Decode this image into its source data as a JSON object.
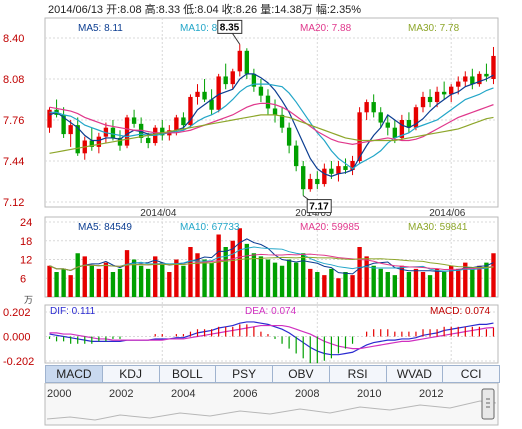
{
  "header": {
    "text": "2014/06/13 开:8.08 高:8.33 低:8.04 收:8.26 量:14.38万 幅:2.35%"
  },
  "price_panel": {
    "legend": [
      {
        "label": "MA5: 8.11",
        "color": "#0b3d91"
      },
      {
        "label": "MA10: 8.01",
        "color": "#22a6c8"
      },
      {
        "label": "MA20: 7.88",
        "color": "#e0388c"
      },
      {
        "label": "MA30: 7.78",
        "color": "#8da62a"
      }
    ],
    "y_ticks": [
      "8.40",
      "8.08",
      "7.76",
      "7.44",
      "7.12"
    ],
    "x_ticks": [
      "2014/04",
      "2014/05",
      "2014/06"
    ],
    "high_label": "8.35",
    "low_label": "7.17"
  },
  "volume_panel": {
    "legend": [
      {
        "label": "MA5: 84549",
        "color": "#0b3d91"
      },
      {
        "label": "MA10: 67733",
        "color": "#22a6c8"
      },
      {
        "label": "MA20: 59985",
        "color": "#e0388c"
      },
      {
        "label": "MA30: 59841",
        "color": "#8da62a"
      }
    ],
    "y_ticks": [
      "24",
      "18",
      "12",
      "6"
    ],
    "unit": "万"
  },
  "macd_panel": {
    "dif_label": "DIF: 0.111",
    "dea_label": "DEA: 0.074",
    "macd_label": "MACD: 0.074",
    "y_ticks": [
      "0.202",
      "0.000",
      "-0.202"
    ]
  },
  "tabs": [
    {
      "label": "MACD",
      "active": true
    },
    {
      "label": "KDJ"
    },
    {
      "label": "BOLL"
    },
    {
      "label": "PSY"
    },
    {
      "label": "OBV"
    },
    {
      "label": "RSI"
    },
    {
      "label": "WVAD"
    },
    {
      "label": "CCI"
    }
  ],
  "timeline": {
    "years": [
      "2000",
      "2002",
      "2004",
      "2006",
      "2008",
      "2010",
      "2012"
    ]
  },
  "colors": {
    "up": "#e60000",
    "down": "#00a000",
    "grid": "#d8d8d8",
    "axis_text_red": "#c00000"
  },
  "chart_data": {
    "type": "candlestick",
    "price_ylim": [
      7.12,
      8.4
    ],
    "volume_ylim": [
      0,
      24
    ],
    "macd_ylim": [
      -0.202,
      0.202
    ],
    "candles": [
      [
        7.7,
        7.86,
        7.66,
        7.84
      ],
      [
        7.84,
        7.92,
        7.78,
        7.8
      ],
      [
        7.8,
        7.86,
        7.62,
        7.65
      ],
      [
        7.65,
        7.76,
        7.55,
        7.72
      ],
      [
        7.72,
        7.78,
        7.48,
        7.5
      ],
      [
        7.5,
        7.63,
        7.45,
        7.6
      ],
      [
        7.6,
        7.7,
        7.52,
        7.55
      ],
      [
        7.55,
        7.66,
        7.5,
        7.63
      ],
      [
        7.63,
        7.74,
        7.58,
        7.7
      ],
      [
        7.7,
        7.76,
        7.6,
        7.62
      ],
      [
        7.62,
        7.68,
        7.52,
        7.56
      ],
      [
        7.56,
        7.8,
        7.54,
        7.78
      ],
      [
        7.78,
        7.84,
        7.7,
        7.73
      ],
      [
        7.73,
        7.78,
        7.58,
        7.62
      ],
      [
        7.62,
        7.66,
        7.54,
        7.58
      ],
      [
        7.58,
        7.72,
        7.56,
        7.7
      ],
      [
        7.7,
        7.76,
        7.6,
        7.64
      ],
      [
        7.64,
        7.72,
        7.6,
        7.68
      ],
      [
        7.68,
        7.8,
        7.64,
        7.78
      ],
      [
        7.78,
        7.82,
        7.68,
        7.72
      ],
      [
        7.72,
        7.96,
        7.7,
        7.94
      ],
      [
        7.94,
        8.04,
        7.88,
        7.98
      ],
      [
        7.98,
        8.08,
        7.9,
        7.92
      ],
      [
        7.92,
        8.0,
        7.8,
        7.84
      ],
      [
        7.84,
        8.12,
        7.82,
        8.1
      ],
      [
        8.1,
        8.2,
        8.0,
        8.04
      ],
      [
        8.04,
        8.16,
        8.0,
        8.14
      ],
      [
        8.14,
        8.35,
        8.1,
        8.3
      ],
      [
        8.3,
        8.32,
        8.08,
        8.12
      ],
      [
        8.12,
        8.16,
        7.98,
        8.02
      ],
      [
        8.02,
        8.08,
        7.9,
        7.95
      ],
      [
        7.95,
        8.0,
        7.8,
        7.85
      ],
      [
        7.85,
        7.92,
        7.74,
        7.8
      ],
      [
        7.8,
        7.86,
        7.66,
        7.7
      ],
      [
        7.7,
        7.74,
        7.5,
        7.56
      ],
      [
        7.56,
        7.6,
        7.36,
        7.4
      ],
      [
        7.4,
        7.44,
        7.17,
        7.22
      ],
      [
        7.22,
        7.34,
        7.2,
        7.3
      ],
      [
        7.3,
        7.36,
        7.22,
        7.26
      ],
      [
        7.26,
        7.42,
        7.24,
        7.38
      ],
      [
        7.38,
        7.44,
        7.3,
        7.34
      ],
      [
        7.34,
        7.44,
        7.28,
        7.4
      ],
      [
        7.4,
        7.46,
        7.34,
        7.37
      ],
      [
        7.37,
        7.48,
        7.33,
        7.44
      ],
      [
        7.44,
        7.86,
        7.42,
        7.82
      ],
      [
        7.82,
        7.92,
        7.76,
        7.9
      ],
      [
        7.9,
        7.96,
        7.78,
        7.82
      ],
      [
        7.82,
        7.86,
        7.7,
        7.74
      ],
      [
        7.74,
        7.8,
        7.64,
        7.7
      ],
      [
        7.7,
        7.76,
        7.58,
        7.62
      ],
      [
        7.62,
        7.8,
        7.6,
        7.76
      ],
      [
        7.76,
        7.82,
        7.66,
        7.7
      ],
      [
        7.7,
        7.88,
        7.68,
        7.86
      ],
      [
        7.86,
        7.98,
        7.82,
        7.94
      ],
      [
        7.94,
        8.0,
        7.86,
        7.9
      ],
      [
        7.9,
        8.02,
        7.86,
        7.98
      ],
      [
        7.98,
        8.06,
        7.92,
        7.96
      ],
      [
        7.96,
        8.04,
        7.9,
        8.02
      ],
      [
        8.02,
        8.1,
        7.96,
        8.06
      ],
      [
        8.06,
        8.14,
        8.02,
        8.1
      ],
      [
        8.1,
        8.16,
        8.0,
        8.04
      ],
      [
        8.04,
        8.14,
        8.02,
        8.12
      ],
      [
        8.12,
        8.2,
        8.06,
        8.1
      ],
      [
        8.08,
        8.33,
        8.04,
        8.26
      ]
    ],
    "volume": [
      10,
      8,
      9,
      7,
      14,
      13,
      10,
      9,
      11,
      8,
      9,
      15,
      12,
      10,
      9,
      13,
      11,
      8,
      12,
      10,
      16,
      14,
      12,
      11,
      20,
      16,
      18,
      22,
      17,
      14,
      13,
      12,
      11,
      10,
      12,
      11,
      14,
      9,
      8,
      7,
      9,
      6,
      8,
      7,
      16,
      13,
      10,
      9,
      8,
      7,
      10,
      8,
      9,
      8,
      7,
      9,
      8,
      10,
      9,
      11,
      9,
      10,
      11,
      14
    ],
    "ma5": [
      7.8,
      7.82,
      7.78,
      7.74,
      7.7,
      7.64,
      7.6,
      7.6,
      7.62,
      7.62,
      7.61,
      7.65,
      7.68,
      7.67,
      7.65,
      7.65,
      7.66,
      7.66,
      7.68,
      7.7,
      7.76,
      7.84,
      7.88,
      7.92,
      7.96,
      7.98,
      8.0,
      8.08,
      8.12,
      8.12,
      8.09,
      8.05,
      7.99,
      7.91,
      7.82,
      7.7,
      7.58,
      7.46,
      7.38,
      7.34,
      7.32,
      7.34,
      7.35,
      7.37,
      7.47,
      7.56,
      7.64,
      7.7,
      7.8,
      7.76,
      7.72,
      7.7,
      7.73,
      7.77,
      7.83,
      7.88,
      7.92,
      7.96,
      7.98,
      8.02,
      8.04,
      8.06,
      8.08,
      8.11
    ],
    "ma10": [
      7.82,
      7.82,
      7.8,
      7.79,
      7.76,
      7.72,
      7.7,
      7.68,
      7.66,
      7.65,
      7.64,
      7.63,
      7.64,
      7.65,
      7.64,
      7.64,
      7.65,
      7.66,
      7.67,
      7.68,
      7.71,
      7.75,
      7.78,
      7.8,
      7.83,
      7.87,
      7.92,
      7.98,
      8.02,
      8.04,
      8.04,
      8.04,
      8.03,
      8.02,
      7.97,
      7.9,
      7.82,
      7.74,
      7.66,
      7.6,
      7.52,
      7.46,
      7.42,
      7.38,
      7.42,
      7.45,
      7.48,
      7.52,
      7.58,
      7.62,
      7.64,
      7.66,
      7.7,
      7.72,
      7.74,
      7.76,
      7.8,
      7.84,
      7.88,
      7.92,
      7.94,
      7.96,
      7.99,
      8.01
    ],
    "ma20": [
      7.86,
      7.85,
      7.84,
      7.83,
      7.81,
      7.78,
      7.76,
      7.74,
      7.72,
      7.71,
      7.7,
      7.69,
      7.68,
      7.68,
      7.67,
      7.66,
      7.66,
      7.66,
      7.66,
      7.67,
      7.68,
      7.7,
      7.72,
      7.74,
      7.76,
      7.78,
      7.8,
      7.83,
      7.86,
      7.88,
      7.89,
      7.89,
      7.88,
      7.86,
      7.83,
      7.79,
      7.75,
      7.71,
      7.67,
      7.64,
      7.61,
      7.59,
      7.58,
      7.57,
      7.58,
      7.59,
      7.6,
      7.61,
      7.62,
      7.61,
      7.6,
      7.6,
      7.61,
      7.63,
      7.66,
      7.69,
      7.72,
      7.75,
      7.78,
      7.8,
      7.82,
      7.84,
      7.86,
      7.88
    ],
    "ma30": [
      7.5,
      7.51,
      7.52,
      7.53,
      7.54,
      7.55,
      7.56,
      7.57,
      7.58,
      7.59,
      7.6,
      7.61,
      7.62,
      7.63,
      7.64,
      7.65,
      7.66,
      7.67,
      7.68,
      7.69,
      7.7,
      7.71,
      7.72,
      7.73,
      7.74,
      7.75,
      7.76,
      7.77,
      7.78,
      7.79,
      7.8,
      7.8,
      7.8,
      7.79,
      7.78,
      7.76,
      7.74,
      7.72,
      7.7,
      7.68,
      7.66,
      7.64,
      7.62,
      7.61,
      7.6,
      7.6,
      7.6,
      7.6,
      7.6,
      7.6,
      7.61,
      7.62,
      7.63,
      7.64,
      7.65,
      7.66,
      7.67,
      7.68,
      7.69,
      7.71,
      7.73,
      7.75,
      7.77,
      7.78
    ],
    "dif": [
      0.02,
      0.01,
      0.0,
      -0.01,
      -0.02,
      -0.03,
      -0.04,
      -0.04,
      -0.04,
      -0.04,
      -0.04,
      -0.03,
      -0.03,
      -0.03,
      -0.03,
      -0.02,
      -0.02,
      -0.02,
      -0.01,
      -0.01,
      0.01,
      0.03,
      0.04,
      0.05,
      0.07,
      0.08,
      0.09,
      0.11,
      0.12,
      0.12,
      0.11,
      0.1,
      0.08,
      0.06,
      0.03,
      -0.01,
      -0.05,
      -0.09,
      -0.12,
      -0.14,
      -0.15,
      -0.15,
      -0.14,
      -0.13,
      -0.1,
      -0.07,
      -0.05,
      -0.04,
      -0.03,
      -0.03,
      -0.02,
      -0.02,
      -0.01,
      0.01,
      0.02,
      0.03,
      0.05,
      0.06,
      0.07,
      0.08,
      0.09,
      0.1,
      0.1,
      0.111
    ],
    "dea": [
      0.03,
      0.03,
      0.02,
      0.02,
      0.01,
      0.0,
      -0.01,
      -0.02,
      -0.02,
      -0.03,
      -0.03,
      -0.03,
      -0.03,
      -0.03,
      -0.03,
      -0.03,
      -0.03,
      -0.02,
      -0.02,
      -0.02,
      -0.01,
      0.0,
      0.01,
      0.02,
      0.03,
      0.04,
      0.05,
      0.06,
      0.07,
      0.08,
      0.09,
      0.09,
      0.09,
      0.09,
      0.08,
      0.06,
      0.04,
      0.02,
      -0.01,
      -0.04,
      -0.06,
      -0.08,
      -0.09,
      -0.1,
      -0.1,
      -0.09,
      -0.08,
      -0.07,
      -0.06,
      -0.05,
      -0.04,
      -0.04,
      -0.03,
      -0.02,
      -0.01,
      0.0,
      0.01,
      0.02,
      0.03,
      0.04,
      0.05,
      0.06,
      0.07,
      0.074
    ]
  }
}
